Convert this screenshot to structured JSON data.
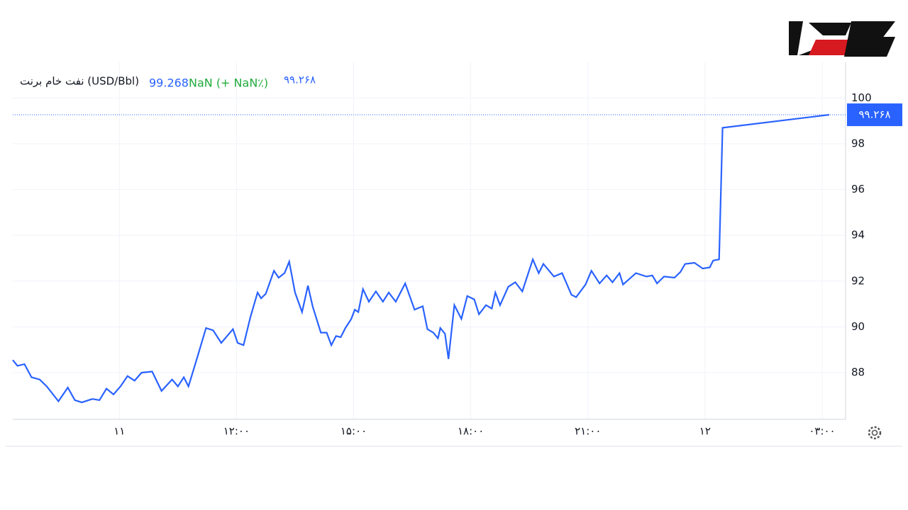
{
  "chart_data": {
    "type": "line",
    "title": "نفت خام برنت (USD/Bbl)",
    "last_price_label": "۹۹.۲۶۸",
    "change_label": "NaN (+ NaN٪)",
    "x": [
      -0.91,
      -0.87,
      -0.81,
      -0.75,
      -0.68,
      -0.62,
      -0.52,
      -0.44,
      -0.38,
      -0.32,
      -0.23,
      -0.17,
      -0.11,
      -0.05,
      0.01,
      0.07,
      0.13,
      0.19,
      0.28,
      0.36,
      0.45,
      0.5,
      0.55,
      0.59,
      0.67,
      0.74,
      0.8,
      0.87,
      0.97,
      1.01,
      1.06,
      1.12,
      1.18,
      1.21,
      1.25,
      1.32,
      1.36,
      1.41,
      1.45,
      1.5,
      1.56,
      1.61,
      1.65,
      1.72,
      1.77,
      1.81,
      1.85,
      1.89,
      1.93,
      1.98,
      2.01,
      2.04,
      2.08,
      2.13,
      2.19,
      2.25,
      2.3,
      2.36,
      2.44,
      2.52,
      2.59,
      2.63,
      2.68,
      2.72,
      2.74,
      2.78,
      2.81,
      2.86,
      2.92,
      2.97,
      3.03,
      3.07,
      3.13,
      3.18,
      3.21,
      3.25,
      3.32,
      3.38,
      3.44,
      3.53,
      3.58,
      3.62,
      3.71,
      3.78,
      3.86,
      3.9,
      3.98,
      4.03,
      4.1,
      4.16,
      4.21,
      4.27,
      4.3,
      4.41,
      4.5,
      4.55,
      4.59,
      4.65,
      4.74,
      4.79,
      4.83,
      4.91,
      4.98,
      5.04,
      5.07,
      5.12,
      5.15,
      6.06
    ],
    "series": [
      {
        "name": "نفت خام برنت",
        "color": "#2962ff",
        "values": [
          88.55,
          88.3,
          88.37,
          87.8,
          87.7,
          87.4,
          86.75,
          87.35,
          86.8,
          86.7,
          86.85,
          86.8,
          87.3,
          87.05,
          87.4,
          87.85,
          87.65,
          88,
          88.05,
          87.2,
          87.7,
          87.4,
          87.8,
          87.4,
          88.75,
          89.95,
          89.85,
          89.3,
          89.9,
          89.3,
          89.2,
          90.45,
          91.5,
          91.25,
          91.45,
          92.45,
          92.15,
          92.35,
          92.85,
          91.5,
          90.65,
          91.8,
          90.9,
          89.75,
          89.75,
          89.2,
          89.6,
          89.55,
          89.95,
          90.35,
          90.75,
          90.65,
          91.65,
          91.1,
          91.55,
          91.1,
          91.5,
          91.1,
          91.9,
          90.75,
          90.9,
          89.9,
          89.75,
          89.5,
          89.95,
          89.7,
          88.6,
          90.95,
          90.35,
          91.35,
          91.2,
          90.55,
          90.95,
          90.8,
          91.5,
          90.95,
          91.75,
          91.95,
          91.55,
          92.95,
          92.35,
          92.75,
          92.2,
          92.35,
          91.4,
          91.3,
          91.85,
          92.45,
          91.9,
          92.25,
          91.95,
          92.35,
          91.85,
          92.35,
          92.2,
          92.25,
          91.9,
          92.2,
          92.15,
          92.4,
          92.75,
          92.8,
          92.55,
          92.6,
          92.9,
          92.95,
          98.7,
          99.268
        ]
      }
    ],
    "xlim": [
      -0.91,
      6.2
    ],
    "xticks": [
      {
        "value": 0,
        "label": "۱۱"
      },
      {
        "value": 1,
        "label": "۱۲:۰۰"
      },
      {
        "value": 2,
        "label": "۱۵:۰۰"
      },
      {
        "value": 3,
        "label": "۱۸:۰۰"
      },
      {
        "value": 4,
        "label": "۲۱:۰۰"
      },
      {
        "value": 5,
        "label": "۱۲"
      },
      {
        "value": 6,
        "label": "۰۳:۰۰"
      }
    ],
    "ylim": [
      85.96,
      101.56
    ],
    "yticks": [
      88,
      90,
      92,
      94,
      96,
      98,
      100
    ],
    "grid": true
  }
}
